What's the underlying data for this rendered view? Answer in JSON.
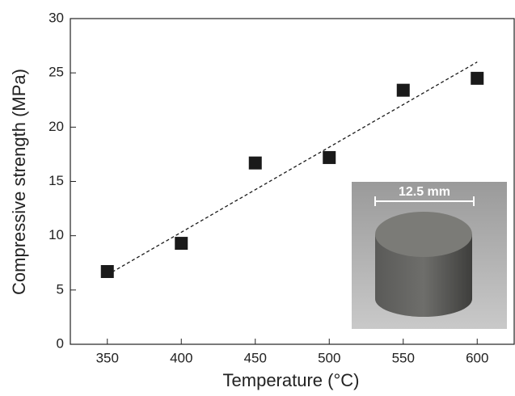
{
  "chart_data": {
    "type": "scatter",
    "x_label": "Temperature (°C)",
    "y_label": "Compressive strength (MPa)",
    "x": [
      350,
      400,
      450,
      500,
      550,
      600
    ],
    "values": [
      6.7,
      9.3,
      16.7,
      17.2,
      23.4,
      24.5
    ],
    "color": "#1a1a1a",
    "trend_line": {
      "x": [
        350,
        600
      ],
      "values": [
        6.4,
        26.0
      ],
      "color": "#1a1a1a",
      "style": "dashed"
    },
    "xlim": [
      325,
      625
    ],
    "xticks": [
      350,
      400,
      450,
      500,
      550,
      600
    ],
    "ylim": [
      0,
      30
    ],
    "yticks": [
      0,
      5,
      10,
      15,
      20,
      25,
      30
    ],
    "grid": false,
    "inset_label": "12.5 mm"
  }
}
